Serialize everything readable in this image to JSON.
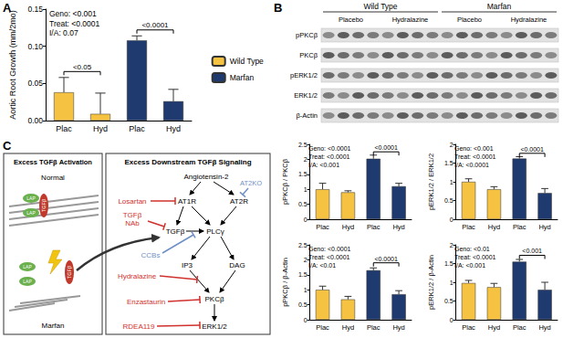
{
  "panels": [
    "A",
    "B",
    "C"
  ],
  "chart_data": [
    {
      "type": "bar",
      "ylabel": "Aortic Root Growth (mm/2mo)",
      "categories": [
        "Plac",
        "Hyd",
        "Plac",
        "Hyd"
      ],
      "series": [
        {
          "name": "Wild Type",
          "color": "#F5C242",
          "values": [
            0.038,
            0.009,
            null,
            null
          ],
          "errors": [
            0.02,
            0.028,
            null,
            null
          ]
        },
        {
          "name": "Marfan",
          "color": "#1F3A6E",
          "values": [
            null,
            null,
            0.108,
            0.026
          ],
          "errors": [
            null,
            null,
            0.006,
            0.016
          ]
        }
      ],
      "ylim": [
        0,
        0.15
      ],
      "yticks": [
        {
          "value": 0,
          "label": "0.00"
        },
        {
          "value": 0.05,
          "label": "0.05"
        },
        {
          "value": 0.1,
          "label": "0.10"
        },
        {
          "value": 0.15,
          "label": "0.15"
        }
      ],
      "annotations": [
        "Geno: <0.001",
        "Treat: <0.0001",
        "I/A: 0.07"
      ],
      "comparisons": [
        {
          "from": 0,
          "to": 1,
          "y": 0.066,
          "label": "<0.05"
        },
        {
          "from": 2,
          "to": 3,
          "y": 0.122,
          "label": "<0.0001"
        }
      ],
      "legend": "right",
      "grid": false
    },
    {
      "type": "bar",
      "ylabel": "pPKCβ / PKCβ",
      "categories": [
        "Plac",
        "Hyd",
        "Plac",
        "Hyd"
      ],
      "values": [
        1.0,
        0.9,
        2.02,
        1.1
      ],
      "errors": [
        0.2,
        0.05,
        0.12,
        0.1
      ],
      "colors": [
        "#F5C242",
        "#F5C242",
        "#1F3A6E",
        "#1F3A6E"
      ],
      "ylim": [
        0,
        2.5
      ],
      "yticks": [
        0,
        0.5,
        1,
        1.5,
        2,
        2.5
      ],
      "annotations": [
        "Geno: <0.0001",
        "Treat: <0.0001",
        "I/A: <0.001"
      ],
      "comparisons": [
        {
          "from": 2,
          "to": 3,
          "y": 2.25,
          "label": "<0.0001"
        }
      ],
      "grid": false
    },
    {
      "type": "bar",
      "ylabel": "pERK1/2 / ERK1/2",
      "categories": [
        "Plac",
        "Hyd",
        "Plac",
        "Hyd"
      ],
      "values": [
        1.0,
        0.8,
        1.62,
        0.7
      ],
      "errors": [
        0.08,
        0.07,
        0.05,
        0.12
      ],
      "colors": [
        "#F5C242",
        "#F5C242",
        "#1F3A6E",
        "#1F3A6E"
      ],
      "ylim": [
        0,
        2
      ],
      "yticks": [
        0,
        0.5,
        1,
        1.5,
        2
      ],
      "annotations": [
        "Geno: <0.001",
        "Treat: <0.0001",
        "I/A: <0.0001"
      ],
      "comparisons": [
        {
          "from": 2,
          "to": 3,
          "y": 1.76,
          "label": "<0.0001"
        }
      ],
      "grid": false
    },
    {
      "type": "bar",
      "ylabel": "pPKCβ / β-Actin",
      "categories": [
        "Plac",
        "Hyd",
        "Plac",
        "Hyd"
      ],
      "values": [
        1.0,
        0.68,
        1.65,
        0.85
      ],
      "errors": [
        0.12,
        0.1,
        0.08,
        0.12
      ],
      "colors": [
        "#F5C242",
        "#F5C242",
        "#1F3A6E",
        "#1F3A6E"
      ],
      "ylim": [
        0,
        2.5
      ],
      "yticks": [
        0,
        0.5,
        1,
        1.5,
        2,
        2.5
      ],
      "annotations": [
        "Geno: <0.0001",
        "Treat: <0.0001",
        "I/A: <0.01"
      ],
      "comparisons": [
        {
          "from": 2,
          "to": 3,
          "y": 1.9,
          "label": "<0.0001"
        }
      ],
      "grid": false
    },
    {
      "type": "bar",
      "ylabel": "pERK1/2 / β-Actin",
      "categories": [
        "Plac",
        "Hyd",
        "Plac",
        "Hyd"
      ],
      "values": [
        0.98,
        0.87,
        1.55,
        0.8
      ],
      "errors": [
        0.07,
        0.1,
        0.06,
        0.2
      ],
      "colors": [
        "#F5C242",
        "#F5C242",
        "#1F3A6E",
        "#1F3A6E"
      ],
      "ylim": [
        0,
        2
      ],
      "yticks": [
        0,
        0.5,
        1,
        1.5,
        2
      ],
      "annotations": [
        "Geno: <0.01",
        "Treat: <0.0001",
        "I/A: <0.001"
      ],
      "comparisons": [
        {
          "from": 2,
          "to": 3,
          "y": 1.72,
          "label": "<0.001"
        }
      ],
      "grid": false
    }
  ],
  "blot": {
    "groups": [
      "Wild Type",
      "Marfan"
    ],
    "treatments": [
      "Placebo",
      "Hydralazine",
      "Placebo",
      "Hydralazine"
    ],
    "rows": [
      "pPKCβ",
      "PKCβ",
      "pERK1/2",
      "ERK1/2",
      "β-Actin"
    ]
  },
  "diagram": {
    "left": {
      "title": "Excess TGFβ Activation",
      "normal": "Normal",
      "marfan": "Marfan",
      "lap": "LAP",
      "tgfb": "TGFβ"
    },
    "right": {
      "title": "Excess Downstream TGFβ Signaling",
      "nodes": {
        "ang": "Angiotensin-2",
        "at1r": "AT1R",
        "at2r": "AT2R",
        "tgfb": "TGFβ",
        "plc": "PLCγ",
        "ip3": "IP3",
        "dag": "DAG",
        "pkc": "PKCβ",
        "erk": "ERK1/2"
      },
      "inhibitors": {
        "losartan": "Losartan",
        "nab": "TGFβ NAb",
        "hydralazine": "Hydralazine",
        "enzastaurin": "Enzastaurin",
        "rdea": "RDEA119"
      },
      "modulators": {
        "at2ko": "AT2KO",
        "ccbs": "CCBs"
      }
    }
  }
}
